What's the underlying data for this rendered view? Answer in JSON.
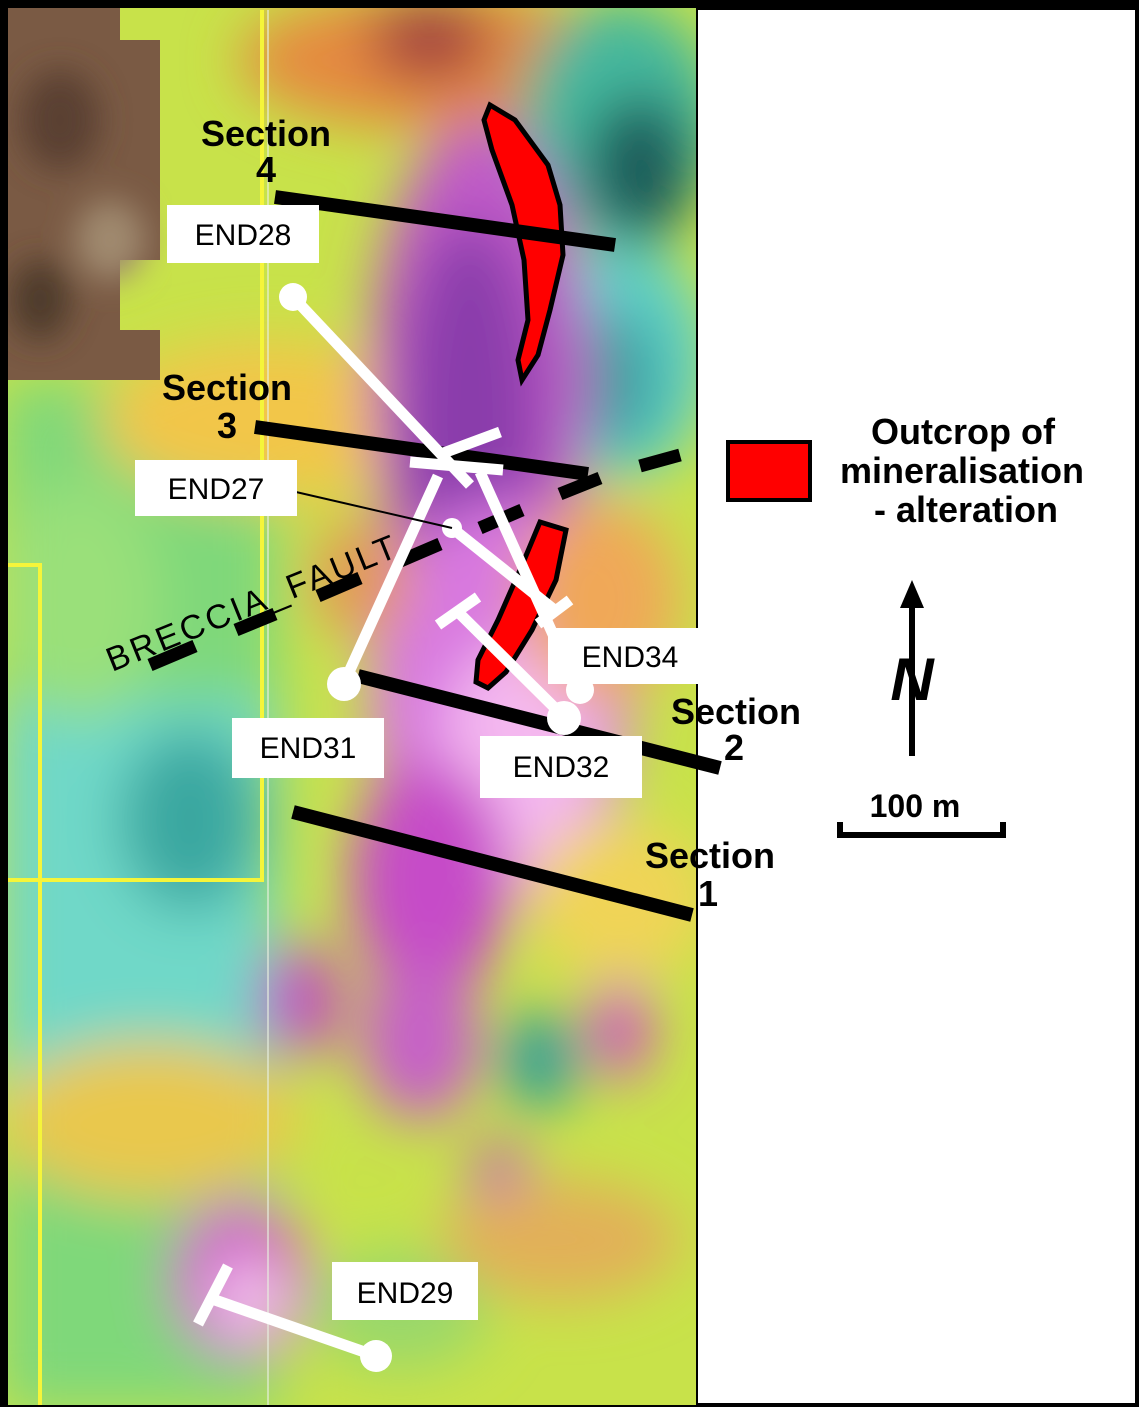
{
  "map": {
    "sections": [
      {
        "id": "section-1",
        "word": "Section",
        "number": "1"
      },
      {
        "id": "section-2",
        "word": "Section",
        "number": "2"
      },
      {
        "id": "section-3",
        "word": "Section",
        "number": "3"
      },
      {
        "id": "section-4",
        "word": "Section",
        "number": "4"
      }
    ],
    "drillholes": [
      "END28",
      "END27",
      "END34",
      "END31",
      "END32",
      "END29"
    ],
    "fault_label": "BRECCIA_FAULT",
    "colors": {
      "outcrop": "#ff0000",
      "section_line": "#000000",
      "drill_trace": "#ffffff",
      "grid_boundary": "#ffff33",
      "label_box": "#ffffff"
    }
  },
  "legend": {
    "outcrop_lines": [
      "Outcrop of",
      "mineralisation",
      "- alteration"
    ],
    "north_symbol": "N",
    "scale_label": "100 m"
  }
}
